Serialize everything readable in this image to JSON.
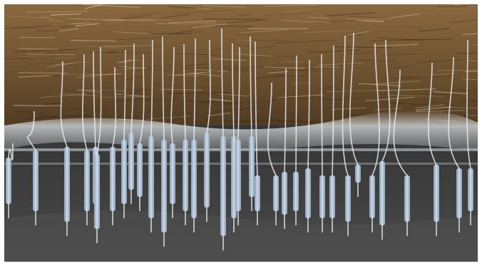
{
  "scene": {
    "subject": "3d-wellbore-visualization",
    "colors": {
      "rock_top": "#8a6840",
      "rock_mid": "#6d5130",
      "rock_bottom": "#4e3a22",
      "fog": "#d9dde0",
      "ground_top": "#3a3a3a",
      "ground_bottom": "#4a4a4a",
      "well_line": "#e8eef2",
      "well_body": "#b9c9dc",
      "well_body_dark": "#8fa4bd"
    }
  }
}
